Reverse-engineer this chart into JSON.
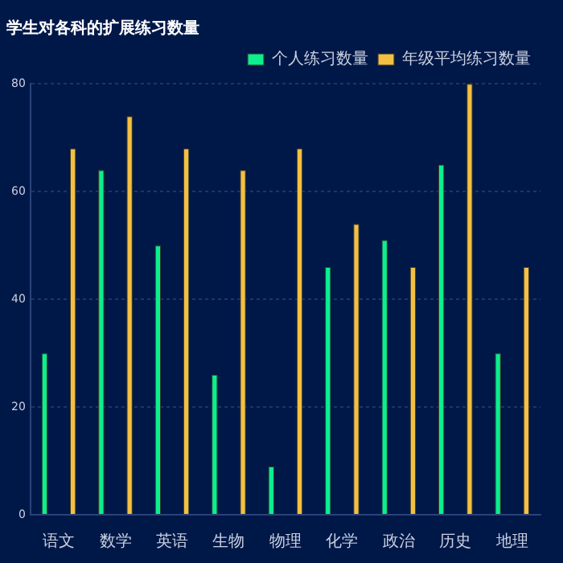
{
  "chart_data": {
    "type": "bar",
    "title": "学生对各科的扩展练习数量",
    "categories": [
      "语文",
      "数学",
      "英语",
      "生物",
      "物理",
      "化学",
      "政治",
      "历史",
      "地理"
    ],
    "series": [
      {
        "name": "个人练习数量",
        "color": "#0bef8f",
        "values": [
          30,
          64,
          50,
          26,
          9,
          46,
          51,
          65,
          30
        ]
      },
      {
        "name": "年级平均练习数量",
        "color": "#f4c043",
        "values": [
          68,
          74,
          68,
          64,
          68,
          54,
          46,
          80,
          46
        ]
      }
    ],
    "ylim": [
      0,
      80
    ],
    "yticks": [
      0,
      20,
      40,
      60,
      80
    ],
    "grid": "y",
    "legend": "top right"
  }
}
